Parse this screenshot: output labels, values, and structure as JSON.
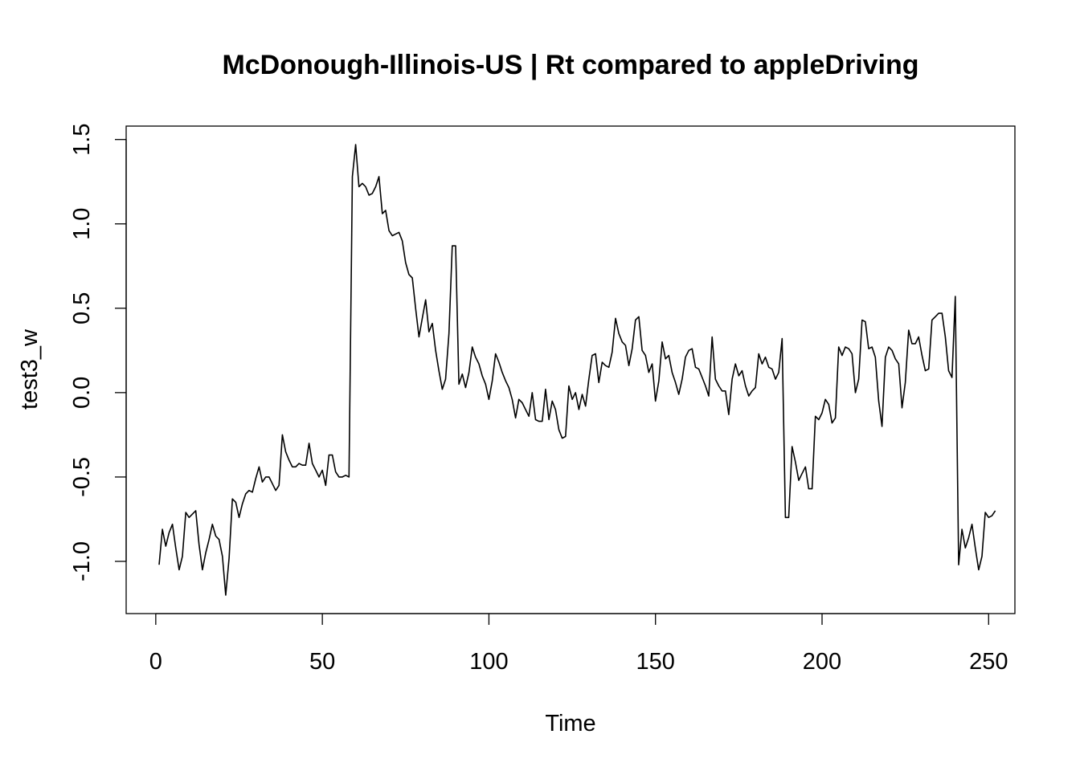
{
  "chart_data": {
    "type": "line",
    "title": "McDonough-Illinois-US | Rt compared to appleDriving",
    "xlabel": "Time",
    "ylabel": "test3_w",
    "xlim": [
      1,
      248
    ],
    "ylim": [
      -1.2,
      1.47
    ],
    "x_ticks": [
      0,
      50,
      100,
      150,
      200,
      250
    ],
    "x_tick_labels": [
      "0",
      "50",
      "100",
      "150",
      "200",
      "250"
    ],
    "y_ticks": [
      -1.0,
      -0.5,
      0.0,
      0.5,
      1.0,
      1.5
    ],
    "y_tick_labels": [
      "-1.0",
      "-0.5",
      "0.0",
      "0.5",
      "1.0",
      "1.5"
    ],
    "grid": false,
    "series": [
      {
        "color": "#000000",
        "values": [
          -1.02,
          -0.81,
          -0.91,
          -0.83,
          -0.78,
          -0.92,
          -1.05,
          -0.97,
          -0.71,
          -0.74,
          -0.72,
          -0.7,
          -0.9,
          -1.05,
          -0.95,
          -0.87,
          -0.78,
          -0.85,
          -0.87,
          -0.97,
          -1.2,
          -0.98,
          -0.63,
          -0.65,
          -0.74,
          -0.66,
          -0.6,
          -0.58,
          -0.59,
          -0.51,
          -0.44,
          -0.53,
          -0.5,
          -0.5,
          -0.54,
          -0.58,
          -0.55,
          -0.25,
          -0.35,
          -0.4,
          -0.44,
          -0.44,
          -0.42,
          -0.43,
          -0.43,
          -0.3,
          -0.42,
          -0.46,
          -0.5,
          -0.46,
          -0.55,
          -0.37,
          -0.37,
          -0.47,
          -0.5,
          -0.5,
          -0.49,
          -0.5,
          1.28,
          1.47,
          1.22,
          1.24,
          1.22,
          1.17,
          1.18,
          1.22,
          1.28,
          1.06,
          1.08,
          0.96,
          0.93,
          0.94,
          0.95,
          0.9,
          0.77,
          0.7,
          0.68,
          0.5,
          0.33,
          0.44,
          0.55,
          0.36,
          0.41,
          0.25,
          0.13,
          0.02,
          0.08,
          0.35,
          0.87,
          0.87,
          0.05,
          0.11,
          0.03,
          0.12,
          0.27,
          0.21,
          0.17,
          0.1,
          0.05,
          -0.04,
          0.07,
          0.23,
          0.18,
          0.12,
          0.07,
          0.03,
          -0.04,
          -0.15,
          -0.04,
          -0.06,
          -0.1,
          -0.14,
          0.0,
          -0.16,
          -0.17,
          -0.17,
          0.02,
          -0.16,
          -0.05,
          -0.1,
          -0.22,
          -0.27,
          -0.26,
          0.04,
          -0.04,
          0.0,
          -0.1,
          -0.01,
          -0.08,
          0.08,
          0.22,
          0.23,
          0.06,
          0.18,
          0.16,
          0.15,
          0.24,
          0.44,
          0.35,
          0.3,
          0.28,
          0.16,
          0.26,
          0.43,
          0.45,
          0.25,
          0.22,
          0.12,
          0.17,
          -0.05,
          0.07,
          0.3,
          0.2,
          0.22,
          0.12,
          0.06,
          -0.01,
          0.08,
          0.21,
          0.25,
          0.26,
          0.15,
          0.14,
          0.09,
          0.04,
          -0.02,
          0.33,
          0.08,
          0.04,
          0.01,
          0.01,
          -0.13,
          0.08,
          0.17,
          0.1,
          0.13,
          0.04,
          -0.02,
          0.01,
          0.03,
          0.23,
          0.17,
          0.21,
          0.15,
          0.14,
          0.08,
          0.12,
          0.32,
          -0.74,
          -0.74,
          -0.32,
          -0.41,
          -0.52,
          -0.48,
          -0.44,
          -0.57,
          -0.57,
          -0.14,
          -0.16,
          -0.12,
          -0.04,
          -0.07,
          -0.18,
          -0.15,
          0.27,
          0.22,
          0.27,
          0.26,
          0.23,
          0.0,
          0.08,
          0.43,
          0.42,
          0.26,
          0.27,
          0.21,
          -0.05,
          -0.2,
          0.21,
          0.27,
          0.25,
          0.2,
          0.17,
          -0.09,
          0.06,
          0.37,
          0.29,
          0.29,
          0.33,
          0.22,
          0.13,
          0.14,
          0.43,
          0.45,
          0.47,
          0.47,
          0.33,
          0.13,
          0.09,
          0.57,
          -1.02,
          -0.81,
          -0.92,
          -0.86,
          -0.78,
          -0.92,
          -1.05,
          -0.97,
          -0.71,
          -0.74,
          -0.73,
          -0.7
        ]
      }
    ]
  }
}
